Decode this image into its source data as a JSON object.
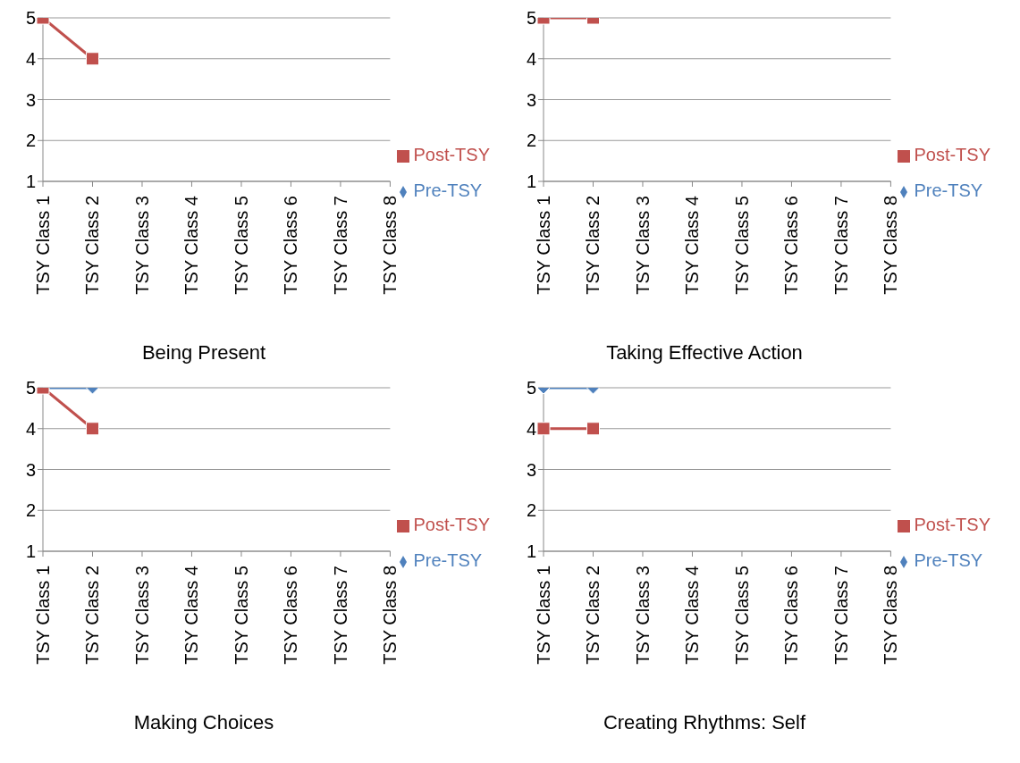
{
  "chart_data": [
    {
      "type": "line",
      "title": "Being Present",
      "categories": [
        "TSY Class 1",
        "TSY Class 2",
        "TSY Class 3",
        "TSY Class 4",
        "TSY Class 5",
        "TSY Class 6",
        "TSY Class 7",
        "TSY Class 8"
      ],
      "ylim": [
        1,
        5
      ],
      "yticks": [
        1,
        2,
        3,
        4,
        5
      ],
      "grid": "y",
      "legend": "right",
      "series": [
        {
          "name": "Pre-TSY",
          "color": "#4f81bd",
          "marker": "diamond",
          "values": [
            null,
            null,
            null,
            null,
            null,
            null,
            null,
            null
          ]
        },
        {
          "name": "Post-TSY",
          "color": "#c0504d",
          "marker": "square",
          "values": [
            5,
            4,
            null,
            null,
            null,
            null,
            null,
            null
          ]
        }
      ]
    },
    {
      "type": "line",
      "title": "Taking Effective Action",
      "categories": [
        "TSY Class 1",
        "TSY Class 2",
        "TSY Class 3",
        "TSY Class 4",
        "TSY Class 5",
        "TSY Class 6",
        "TSY Class 7",
        "TSY Class 8"
      ],
      "ylim": [
        1,
        5
      ],
      "yticks": [
        1,
        2,
        3,
        4,
        5
      ],
      "grid": "y",
      "legend": "right",
      "series": [
        {
          "name": "Pre-TSY",
          "color": "#4f81bd",
          "marker": "diamond",
          "values": [
            null,
            null,
            null,
            null,
            null,
            null,
            null,
            null
          ]
        },
        {
          "name": "Post-TSY",
          "color": "#c0504d",
          "marker": "square",
          "values": [
            5,
            5,
            null,
            null,
            null,
            null,
            null,
            null
          ]
        }
      ]
    },
    {
      "type": "line",
      "title": "Making Choices",
      "categories": [
        "TSY Class 1",
        "TSY Class 2",
        "TSY Class 3",
        "TSY Class 4",
        "TSY Class 5",
        "TSY Class 6",
        "TSY Class 7",
        "TSY Class 8"
      ],
      "ylim": [
        1,
        5
      ],
      "yticks": [
        1,
        2,
        3,
        4,
        5
      ],
      "grid": "y",
      "legend": "right",
      "series": [
        {
          "name": "Pre-TSY",
          "color": "#4f81bd",
          "marker": "diamond",
          "values": [
            5,
            5,
            null,
            null,
            null,
            null,
            null,
            null
          ]
        },
        {
          "name": "Post-TSY",
          "color": "#c0504d",
          "marker": "square",
          "values": [
            5,
            4,
            null,
            null,
            null,
            null,
            null,
            null
          ]
        }
      ]
    },
    {
      "type": "line",
      "title": "Creating Rhythms: Self",
      "categories": [
        "TSY Class 1",
        "TSY Class 2",
        "TSY Class 3",
        "TSY Class 4",
        "TSY Class 5",
        "TSY Class 6",
        "TSY Class 7",
        "TSY Class 8"
      ],
      "ylim": [
        1,
        5
      ],
      "yticks": [
        1,
        2,
        3,
        4,
        5
      ],
      "grid": "y",
      "legend": "right",
      "series": [
        {
          "name": "Pre-TSY",
          "color": "#4f81bd",
          "marker": "diamond",
          "values": [
            5,
            5,
            null,
            null,
            null,
            null,
            null,
            null
          ]
        },
        {
          "name": "Post-TSY",
          "color": "#c0504d",
          "marker": "square",
          "values": [
            4,
            4,
            null,
            null,
            null,
            null,
            null,
            null
          ]
        }
      ]
    }
  ]
}
